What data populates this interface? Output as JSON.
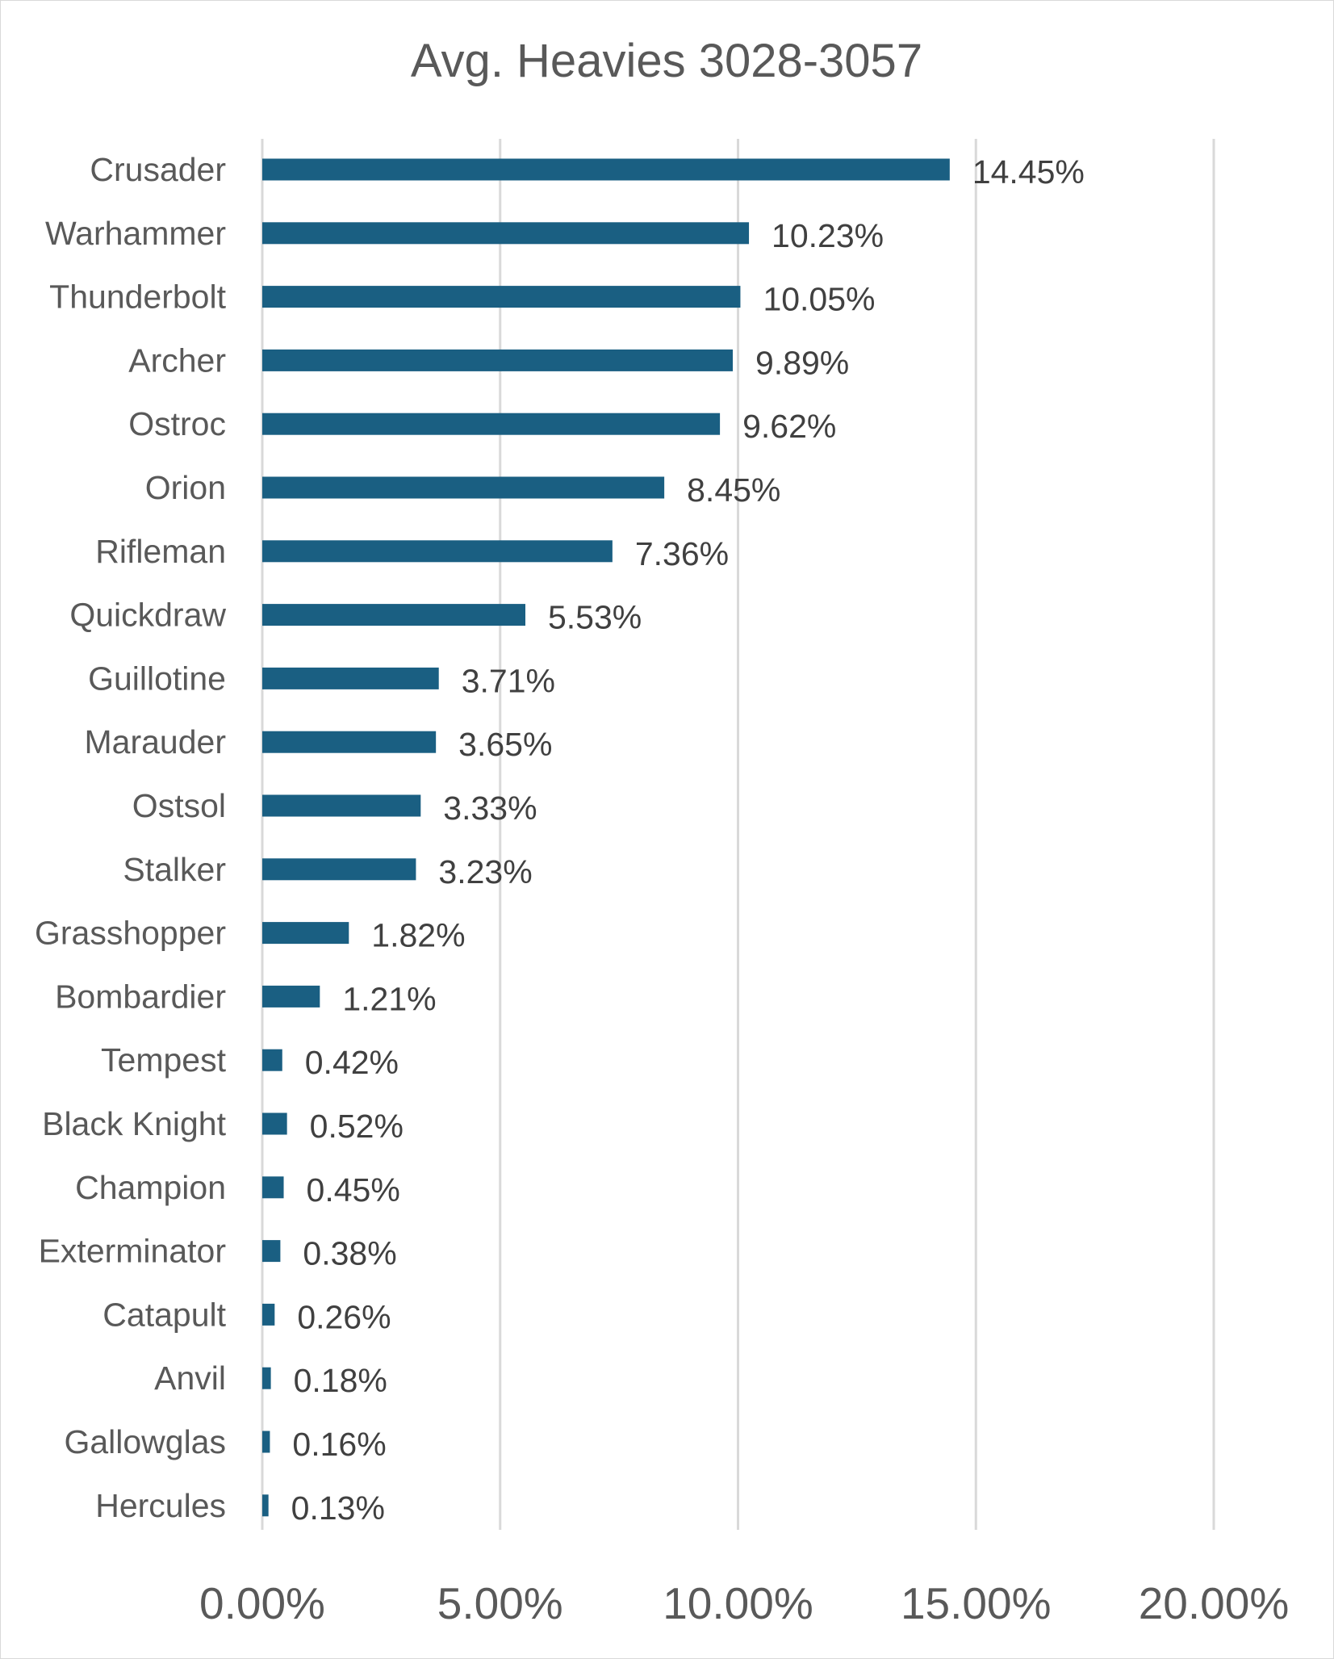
{
  "chart_data": {
    "type": "bar",
    "orientation": "horizontal",
    "title": "Avg. Heavies 3028-3057",
    "categories": [
      "Crusader",
      "Warhammer",
      "Thunderbolt",
      "Archer",
      "Ostroc",
      "Orion",
      "Rifleman",
      "Quickdraw",
      "Guillotine",
      "Marauder",
      "Ostsol",
      "Stalker",
      "Grasshopper",
      "Bombardier",
      "Tempest",
      "Black Knight",
      "Champion",
      "Exterminator",
      "Catapult",
      "Anvil",
      "Gallowglas",
      "Hercules"
    ],
    "values": [
      14.45,
      10.23,
      10.05,
      9.89,
      9.62,
      8.45,
      7.36,
      5.53,
      3.71,
      3.65,
      3.33,
      3.23,
      1.82,
      1.21,
      0.42,
      0.52,
      0.45,
      0.38,
      0.26,
      0.18,
      0.16,
      0.13
    ],
    "data_labels": [
      "14.45%",
      "10.23%",
      "10.05%",
      "9.89%",
      "9.62%",
      "8.45%",
      "7.36%",
      "5.53%",
      "3.71%",
      "3.65%",
      "3.33%",
      "3.23%",
      "1.82%",
      "1.21%",
      "0.42%",
      "0.52%",
      "0.45%",
      "0.38%",
      "0.26%",
      "0.18%",
      "0.16%",
      "0.13%"
    ],
    "xlim": [
      0,
      20
    ],
    "xticks": [
      0,
      5,
      10,
      15,
      20
    ],
    "xtick_labels": [
      "0.00%",
      "5.00%",
      "10.00%",
      "15.00%",
      "20.00%"
    ],
    "xlabel": "",
    "ylabel": "",
    "grid": true,
    "legend": "none",
    "bar_color": "#1a5f82",
    "grid_color": "#d9d9d9"
  }
}
